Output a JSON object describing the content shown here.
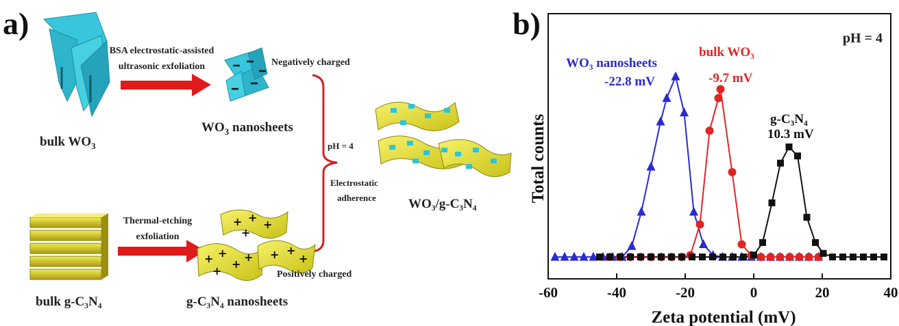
{
  "panel_a": {
    "label": "a)",
    "bulk_wo3": "bulk WO",
    "bulk_wo3_sub": "3",
    "step1_line1": "BSA electrostatic-assisted",
    "step1_line2": "ultrasonic exfoliation",
    "negatively_charged": "Negatively charged",
    "wo3_nanosheets": "WO",
    "wo3_nanosheets_sub": "3",
    "wo3_nanosheets_tail": " nanosheets",
    "ph": "pH = 4",
    "electrostatic": "Electrostatic",
    "adherence": "adherence",
    "product": "WO₃/g-C₃N₄",
    "step2_line1": "Thermal-etching",
    "step2_line2": "exfoliation",
    "positively_charged": "Positively charged",
    "bulk_gcn": "bulk g-C₃N₄",
    "gcn_nanosheets": "g-C₃N₄ nanosheets"
  },
  "panel_b": {
    "label": "b)",
    "ph": "pH = 4",
    "ann_wo3_nano_1": "WO₃ nanosheets",
    "ann_wo3_nano_2": "-22.8 mV",
    "ann_bulk_1": "bulk WO₃",
    "ann_bulk_2": "-9.7 mV",
    "ann_gcn_1": "g-C₃N₄",
    "ann_gcn_2": "10.3 mV"
  },
  "colors": {
    "wo3_nanosheets": "#2a2ad0",
    "bulk_wo3": "#e02424",
    "gcn": "#111111",
    "arrow": "#e01b1b",
    "bracket": "#d42020",
    "cyan": "#2ec4d8",
    "yellow": "#e6e02a"
  },
  "chart_data": {
    "type": "line",
    "xlabel": "Zeta potential (mV)",
    "ylabel": "Total counts",
    "xlim": [
      -60,
      40
    ],
    "ylim": [
      0,
      1.05
    ],
    "x_ticks": [
      -60,
      -40,
      -20,
      0,
      20,
      40
    ],
    "y_ticks": [],
    "grid": false,
    "series": [
      {
        "name": "WO₃ nanosheets",
        "marker": "triangle",
        "color": "#2a2ad0",
        "x": [
          -58,
          -55.2,
          -52.4,
          -49.6,
          -46.8,
          -44,
          -41.2,
          -38.4,
          -35.6,
          -32.8,
          -30,
          -27.2,
          -25.4,
          -22.8,
          -20.3,
          -17.5,
          -14.7,
          -11.9,
          -9.1,
          -6.3,
          -3.5,
          -0.7,
          2.1,
          4.9,
          7.7,
          10.5,
          13.3,
          16.1,
          18.9
        ],
        "y": [
          0,
          0,
          0,
          0,
          0,
          0,
          0,
          0,
          0.06,
          0.25,
          0.5,
          0.75,
          0.88,
          1.0,
          0.8,
          0.25,
          0.07,
          0.01,
          0,
          0,
          0,
          0,
          0,
          0,
          0,
          0,
          0,
          0,
          0
        ]
      },
      {
        "name": "bulk WO₃",
        "marker": "circle",
        "color": "#e02424",
        "x": [
          -42,
          -39,
          -36,
          -33,
          -30,
          -27,
          -24,
          -21,
          -18.5,
          -15.7,
          -12.9,
          -10.3,
          -9.7,
          -6.3,
          -3.5,
          -0.7,
          2.1,
          4.9,
          7.7,
          10.5,
          13.3,
          16.1,
          18.9
        ],
        "y": [
          0,
          0,
          0,
          0,
          0,
          0,
          0,
          0,
          0.01,
          0.18,
          0.7,
          0.88,
          0.93,
          0.47,
          0.07,
          0.01,
          0,
          0,
          0,
          0,
          0,
          0,
          0
        ]
      },
      {
        "name": "g-C₃N₄",
        "marker": "square",
        "color": "#111111",
        "x": [
          -45,
          -42,
          -39,
          -36,
          -33,
          -30,
          -27,
          -24,
          -21,
          -18,
          -15,
          -12,
          -9,
          -6,
          -3,
          0,
          2.6,
          5.3,
          7.8,
          10.3,
          12.8,
          15.5,
          18,
          20.3,
          23,
          26,
          29,
          32,
          35,
          38
        ],
        "y": [
          0,
          0,
          0,
          0,
          0,
          0,
          0,
          0,
          0,
          0,
          0,
          0,
          0,
          0,
          0,
          0.01,
          0.08,
          0.3,
          0.52,
          0.61,
          0.56,
          0.22,
          0.08,
          0.02,
          0,
          0,
          0,
          0,
          0,
          0
        ]
      }
    ]
  }
}
